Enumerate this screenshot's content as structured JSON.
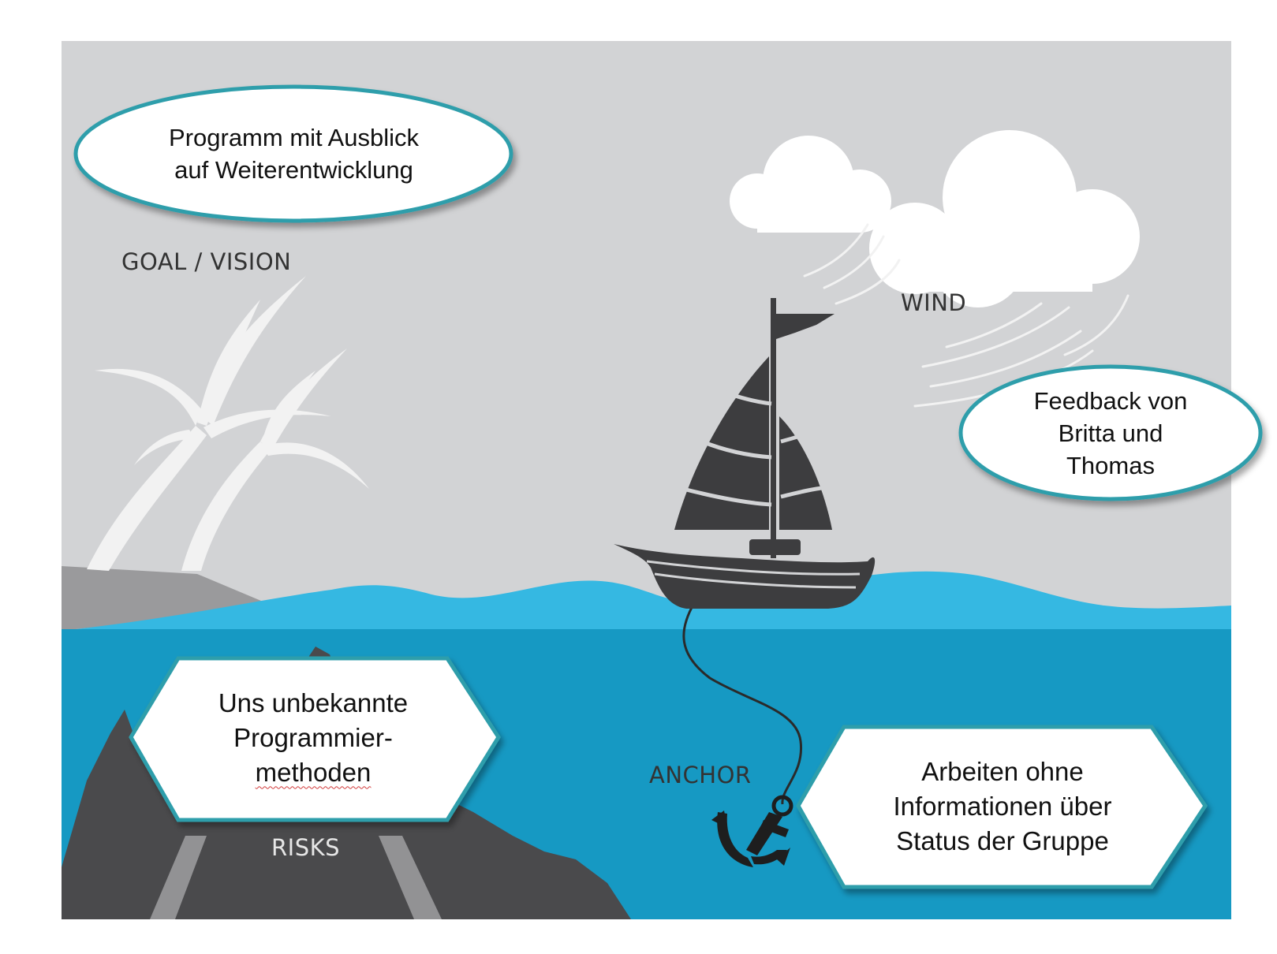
{
  "labels": {
    "goal": "GOAL / VISION",
    "wind": "WIND",
    "anchor": "ANCHOR",
    "risks": "RISKS"
  },
  "callouts": {
    "goal": [
      "Programm mit Ausblick",
      "auf Weiterentwicklung"
    ],
    "wind": [
      "Feedback von",
      "Britta und",
      "Thomas"
    ],
    "risks": [
      "Uns unbekannte",
      "Programmier-",
      "methoden"
    ],
    "anchor": [
      "Arbeiten ohne",
      "Informationen über",
      "Status der Gruppe"
    ]
  },
  "colors": {
    "sky": "#d2d3d5",
    "surface_water": "#35b8e2",
    "deep_water": "#1699c3",
    "boat": "#3d3d3f",
    "rocks": "#4a4a4c",
    "land": "#9a9a9c",
    "palm": "#f2f2f2",
    "cloud": "#ffffff",
    "callout_border": "#2f9eab"
  }
}
